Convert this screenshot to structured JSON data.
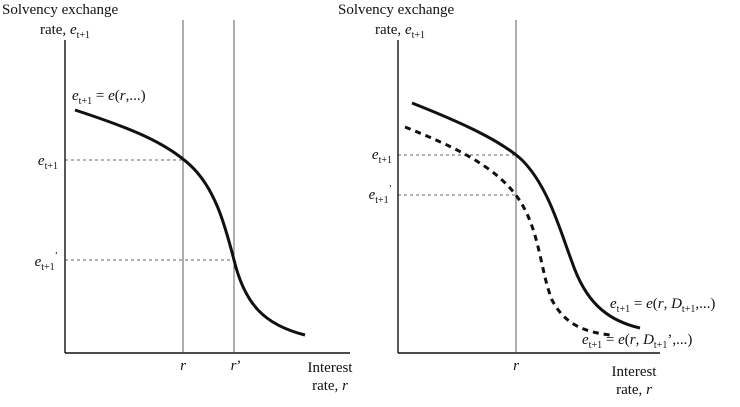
{
  "left_panel": {
    "y_axis_label": {
      "line1": [
        {
          "text": "Solvency exchange"
        }
      ],
      "line2": [
        {
          "text": "rate, "
        },
        {
          "text": "e",
          "italic": true
        },
        {
          "text": "t+1",
          "sub": true
        }
      ]
    },
    "curve_label": [
      {
        "text": "e",
        "italic": true
      },
      {
        "text": "t+1",
        "sub": true
      },
      {
        "text": " = "
      },
      {
        "text": "e",
        "italic": true
      },
      {
        "text": "("
      },
      {
        "text": "r",
        "italic": true
      },
      {
        "text": ",...)"
      }
    ],
    "y_tick_labels": [
      [
        {
          "text": "e",
          "italic": true
        },
        {
          "text": "t+1",
          "sub": true
        }
      ],
      [
        {
          "text": "e",
          "italic": true
        },
        {
          "text": "t+1",
          "sub": true
        },
        {
          "text": "’",
          "sup": true
        }
      ]
    ],
    "x_tick_labels": [
      [
        {
          "text": "r",
          "italic": true
        }
      ],
      [
        {
          "text": "r",
          "italic": true
        },
        {
          "text": "’"
        }
      ]
    ],
    "x_axis_label": {
      "line1": [
        {
          "text": "Interest"
        }
      ],
      "line2": [
        {
          "text": "rate, "
        },
        {
          "text": "r",
          "italic": true
        }
      ]
    }
  },
  "right_panel": {
    "y_axis_label": {
      "line1": [
        {
          "text": "Solvency exchange"
        }
      ],
      "line2": [
        {
          "text": "rate, "
        },
        {
          "text": "e",
          "italic": true
        },
        {
          "text": "t+1",
          "sub": true
        }
      ]
    },
    "curve_labels": [
      [
        {
          "text": "e",
          "italic": true
        },
        {
          "text": "t+1",
          "sub": true
        },
        {
          "text": " = "
        },
        {
          "text": "e",
          "italic": true
        },
        {
          "text": "("
        },
        {
          "text": "r",
          "italic": true
        },
        {
          "text": ", "
        },
        {
          "text": "D",
          "italic": true
        },
        {
          "text": "t+1",
          "sub": true
        },
        {
          "text": ",...)"
        }
      ],
      [
        {
          "text": "e",
          "italic": true
        },
        {
          "text": "t+1",
          "sub": true
        },
        {
          "text": " = "
        },
        {
          "text": "e",
          "italic": true
        },
        {
          "text": "("
        },
        {
          "text": "r",
          "italic": true
        },
        {
          "text": ", "
        },
        {
          "text": "D",
          "italic": true
        },
        {
          "text": "t+1",
          "sub": true
        },
        {
          "text": "’,...)"
        }
      ]
    ],
    "y_tick_labels": [
      [
        {
          "text": "e",
          "italic": true
        },
        {
          "text": "t+1",
          "sub": true
        }
      ],
      [
        {
          "text": "e",
          "italic": true
        },
        {
          "text": "t+1",
          "sub": true
        },
        {
          "text": "’",
          "sup": true
        }
      ]
    ],
    "x_tick_labels": [
      [
        {
          "text": "r",
          "italic": true
        }
      ]
    ],
    "x_axis_label": {
      "line1": [
        {
          "text": "Interest"
        }
      ],
      "line2": [
        {
          "text": "rate, "
        },
        {
          "text": "r",
          "italic": true
        }
      ]
    }
  }
}
